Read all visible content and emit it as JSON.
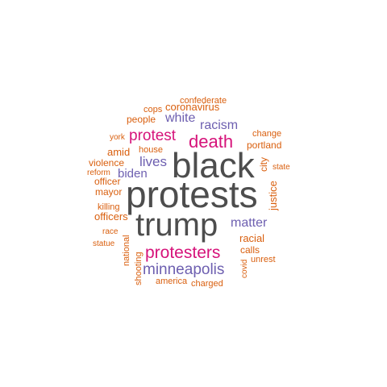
{
  "colors": {
    "gray": "#4d4d4d",
    "magenta": "#d6137a",
    "purple": "#6d5fb0",
    "orange": "#d95f0e"
  },
  "words": [
    {
      "text": "black",
      "color": "gray"
    },
    {
      "text": "protests",
      "color": "gray"
    },
    {
      "text": "trump",
      "color": "gray"
    },
    {
      "text": "protesters",
      "color": "magenta"
    },
    {
      "text": "death",
      "color": "magenta"
    },
    {
      "text": "protest",
      "color": "magenta"
    },
    {
      "text": "minneapolis",
      "color": "purple"
    },
    {
      "text": "lives",
      "color": "purple"
    },
    {
      "text": "matter",
      "color": "purple"
    },
    {
      "text": "racism",
      "color": "purple"
    },
    {
      "text": "white",
      "color": "purple"
    },
    {
      "text": "biden",
      "color": "purple"
    },
    {
      "text": "confederate",
      "color": "orange"
    },
    {
      "text": "cops",
      "color": "orange"
    },
    {
      "text": "coronavirus",
      "color": "orange"
    },
    {
      "text": "people",
      "color": "orange"
    },
    {
      "text": "change",
      "color": "orange"
    },
    {
      "text": "york",
      "color": "orange"
    },
    {
      "text": "portland",
      "color": "orange"
    },
    {
      "text": "house",
      "color": "orange"
    },
    {
      "text": "amid",
      "color": "orange"
    },
    {
      "text": "city",
      "color": "orange"
    },
    {
      "text": "state",
      "color": "orange"
    },
    {
      "text": "violence",
      "color": "orange"
    },
    {
      "text": "reform",
      "color": "orange"
    },
    {
      "text": "officer",
      "color": "orange"
    },
    {
      "text": "mayor",
      "color": "orange"
    },
    {
      "text": "justice",
      "color": "orange"
    },
    {
      "text": "killing",
      "color": "orange"
    },
    {
      "text": "officers",
      "color": "orange"
    },
    {
      "text": "race",
      "color": "orange"
    },
    {
      "text": "racial",
      "color": "orange"
    },
    {
      "text": "national",
      "color": "orange"
    },
    {
      "text": "statue",
      "color": "orange"
    },
    {
      "text": "calls",
      "color": "orange"
    },
    {
      "text": "unrest",
      "color": "orange"
    },
    {
      "text": "covid",
      "color": "orange"
    },
    {
      "text": "shooting",
      "color": "orange"
    },
    {
      "text": "america",
      "color": "orange"
    },
    {
      "text": "charged",
      "color": "orange"
    }
  ]
}
